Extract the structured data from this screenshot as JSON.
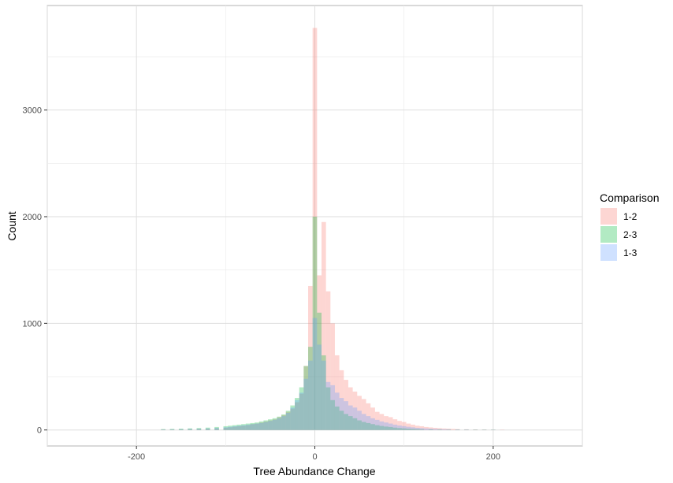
{
  "chart_data": {
    "type": "bar",
    "subtype": "overlaid-histogram",
    "xlabel": "Tree Abundance Change",
    "ylabel": "Count",
    "xlim": [
      -300,
      300
    ],
    "ylim": [
      -150,
      3980
    ],
    "x_ticks": [
      -200,
      0,
      200
    ],
    "y_ticks": [
      0,
      1000,
      2000,
      3000
    ],
    "x_tick_labels": [
      "-200",
      "0",
      "200"
    ],
    "y_tick_labels": [
      "0",
      "1000",
      "2000",
      "3000"
    ],
    "grid": true,
    "bin_width": 5,
    "legend": {
      "title": "Comparison",
      "position": "right"
    },
    "series": [
      {
        "name": "1-2",
        "color": "#F8766D",
        "opacity": 0.3,
        "x": [
          -170,
          -160,
          -150,
          -140,
          -130,
          -120,
          -110,
          -100,
          -95,
          -90,
          -85,
          -80,
          -75,
          -70,
          -65,
          -60,
          -55,
          -50,
          -45,
          -40,
          -35,
          -30,
          -25,
          -20,
          -15,
          -10,
          -5,
          0,
          5,
          10,
          15,
          20,
          25,
          30,
          35,
          40,
          45,
          50,
          55,
          60,
          65,
          70,
          75,
          80,
          85,
          90,
          95,
          100,
          105,
          110,
          115,
          120,
          125,
          130,
          135,
          140,
          145,
          150,
          155,
          160,
          170,
          180,
          190,
          200,
          210
        ],
        "values": [
          5,
          5,
          6,
          8,
          10,
          12,
          15,
          20,
          25,
          30,
          35,
          40,
          45,
          55,
          60,
          70,
          80,
          90,
          100,
          120,
          140,
          170,
          200,
          260,
          340,
          600,
          1350,
          3770,
          1450,
          1950,
          1300,
          1000,
          700,
          560,
          470,
          400,
          360,
          320,
          290,
          250,
          210,
          170,
          150,
          130,
          120,
          100,
          85,
          75,
          60,
          50,
          40,
          35,
          28,
          24,
          20,
          17,
          14,
          12,
          10,
          8,
          6,
          5,
          4,
          3,
          2
        ]
      },
      {
        "name": "2-3",
        "color": "#00BA38",
        "opacity": 0.3,
        "x": [
          -170,
          -160,
          -150,
          -140,
          -130,
          -120,
          -110,
          -100,
          -95,
          -90,
          -85,
          -80,
          -75,
          -70,
          -65,
          -60,
          -55,
          -50,
          -45,
          -40,
          -35,
          -30,
          -25,
          -20,
          -15,
          -10,
          -5,
          0,
          5,
          10,
          15,
          20,
          25,
          30,
          35,
          40,
          45,
          50,
          55,
          60,
          65,
          70,
          75,
          80,
          85,
          90,
          95,
          100,
          105,
          110,
          115,
          120,
          130,
          140,
          150,
          160,
          170,
          180,
          190,
          200
        ],
        "values": [
          8,
          10,
          12,
          15,
          18,
          22,
          28,
          35,
          40,
          45,
          50,
          55,
          60,
          65,
          70,
          80,
          90,
          100,
          110,
          125,
          145,
          180,
          230,
          300,
          400,
          600,
          780,
          2000,
          1100,
          700,
          400,
          280,
          220,
          180,
          150,
          130,
          110,
          90,
          75,
          65,
          55,
          45,
          38,
          32,
          28,
          22,
          18,
          15,
          12,
          10,
          8,
          6,
          5,
          4,
          3,
          2,
          2,
          1,
          1,
          1
        ]
      },
      {
        "name": "1-3",
        "color": "#619CFF",
        "opacity": 0.3,
        "x": [
          -170,
          -160,
          -150,
          -140,
          -130,
          -120,
          -110,
          -100,
          -95,
          -90,
          -85,
          -80,
          -75,
          -70,
          -65,
          -60,
          -55,
          -50,
          -45,
          -40,
          -35,
          -30,
          -25,
          -20,
          -15,
          -10,
          -5,
          0,
          5,
          10,
          15,
          20,
          25,
          30,
          35,
          40,
          45,
          50,
          55,
          60,
          65,
          70,
          75,
          80,
          85,
          90,
          95,
          100,
          105,
          110,
          115,
          120,
          125,
          130,
          135,
          140,
          145,
          150,
          160,
          170,
          180,
          190,
          200
        ],
        "values": [
          5,
          6,
          8,
          10,
          12,
          15,
          20,
          25,
          30,
          35,
          40,
          45,
          50,
          55,
          60,
          65,
          75,
          85,
          95,
          110,
          130,
          160,
          210,
          280,
          350,
          480,
          650,
          1050,
          800,
          650,
          450,
          420,
          350,
          300,
          270,
          230,
          210,
          180,
          150,
          130,
          110,
          95,
          80,
          70,
          60,
          50,
          42,
          36,
          30,
          25,
          20,
          17,
          14,
          12,
          10,
          8,
          7,
          6,
          5,
          4,
          3,
          2,
          2
        ]
      }
    ]
  }
}
